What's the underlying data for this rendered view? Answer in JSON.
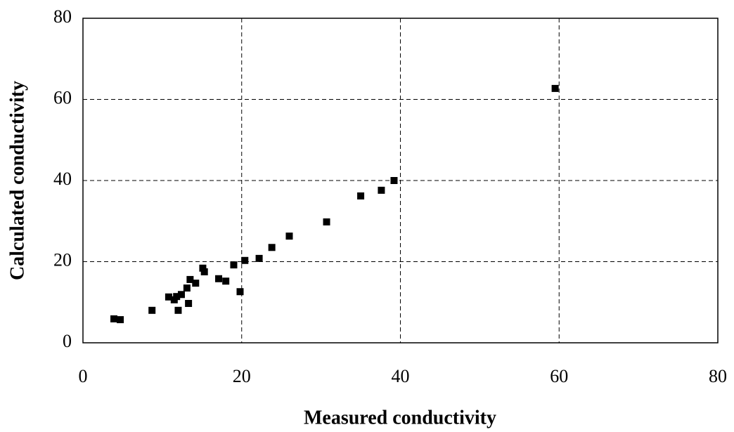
{
  "chart_data": {
    "type": "scatter",
    "x_label": "Measured conductivity",
    "y_label": "Calculated conductivity",
    "x": [
      3.9,
      4.7,
      8.7,
      10.8,
      11.5,
      11.8,
      12.0,
      12.4,
      13.1,
      13.3,
      13.5,
      14.2,
      15.1,
      15.3,
      17.1,
      18.0,
      19.0,
      19.8,
      20.4,
      22.2,
      23.8,
      26.0,
      30.7,
      35.0,
      37.6,
      39.2,
      59.5
    ],
    "values": [
      5.9,
      5.7,
      8.0,
      11.3,
      10.6,
      11.4,
      8.0,
      11.9,
      13.5,
      9.7,
      15.6,
      14.7,
      18.4,
      17.5,
      15.8,
      15.2,
      19.2,
      12.6,
      20.3,
      20.8,
      23.5,
      26.3,
      29.8,
      36.2,
      37.6,
      40.0,
      62.7
    ],
    "color": "#000000",
    "xlim": [
      0,
      80
    ],
    "xticks": [
      0,
      20,
      40,
      60,
      80
    ],
    "ylim": [
      0,
      80
    ],
    "yticks": [
      0,
      20,
      40,
      60,
      80
    ],
    "grid": true
  }
}
